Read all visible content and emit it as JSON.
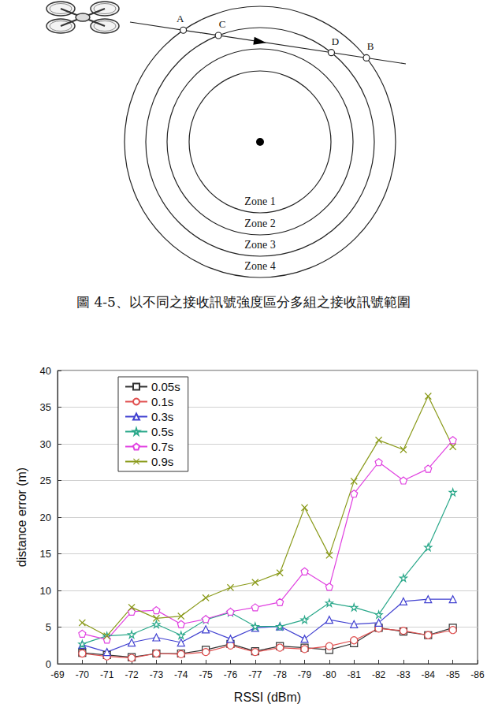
{
  "diagram": {
    "points": [
      "A",
      "C",
      "D",
      "B"
    ],
    "zones": [
      "Zone 1",
      "Zone 2",
      "Zone 3",
      "Zone 4"
    ]
  },
  "caption": "圖 4-5、以不同之接收訊號強度區分多組之接收訊號範圍",
  "chart_data": {
    "type": "line",
    "xlabel": "RSSI (dBm)",
    "ylabel": "distance error (m)",
    "x": [
      -70,
      -71,
      -72,
      -73,
      -74,
      -75,
      -76,
      -77,
      -78,
      -79,
      -80,
      -81,
      -82,
      -83,
      -84,
      -85
    ],
    "xlim": [
      -69,
      -86
    ],
    "xticks": [
      -69,
      -70,
      -71,
      -72,
      -73,
      -74,
      -75,
      -76,
      -77,
      -78,
      -79,
      -80,
      -81,
      -82,
      -83,
      -84,
      -85,
      -86
    ],
    "ylim": [
      0,
      40
    ],
    "yticks": [
      0,
      5,
      10,
      15,
      20,
      25,
      30,
      35,
      40
    ],
    "grid": true,
    "legend": "upper left",
    "series": [
      {
        "name": "0.05s",
        "color": "#333333",
        "marker": "square",
        "values": [
          1.5,
          1.2,
          0.9,
          1.4,
          1.4,
          1.9,
          2.7,
          1.7,
          2.4,
          2.2,
          1.9,
          2.8,
          4.9,
          4.4,
          3.9,
          4.9
        ]
      },
      {
        "name": "0.1s",
        "color": "#e05050",
        "marker": "circle",
        "values": [
          1.4,
          1.0,
          0.8,
          1.4,
          1.3,
          1.6,
          2.5,
          1.6,
          2.2,
          2.0,
          2.4,
          3.2,
          4.8,
          4.5,
          3.9,
          4.6
        ]
      },
      {
        "name": "0.3s",
        "color": "#4040d0",
        "marker": "triangle",
        "values": [
          2.6,
          1.6,
          2.9,
          3.6,
          2.9,
          4.7,
          3.4,
          4.9,
          5.1,
          3.4,
          6.0,
          5.4,
          5.6,
          8.5,
          8.8,
          8.8
        ]
      },
      {
        "name": "0.5s",
        "color": "#2aa88a",
        "marker": "star",
        "values": [
          2.7,
          3.8,
          4.0,
          5.4,
          3.9,
          6.0,
          7.0,
          5.1,
          5.1,
          6.0,
          8.3,
          7.7,
          6.7,
          11.7,
          15.9,
          23.4
        ]
      },
      {
        "name": "0.7s",
        "color": "#e040e0",
        "marker": "pentagon",
        "values": [
          4.1,
          3.3,
          7.1,
          7.3,
          5.4,
          6.1,
          7.1,
          7.7,
          8.4,
          12.6,
          10.5,
          23.2,
          27.5,
          25.0,
          26.6,
          30.5
        ]
      },
      {
        "name": "0.9s",
        "color": "#8a9a1a",
        "marker": "x",
        "values": [
          5.6,
          3.8,
          7.7,
          6.2,
          6.5,
          9.0,
          10.4,
          11.1,
          12.4,
          21.3,
          14.8,
          24.9,
          30.5,
          29.2,
          36.5,
          29.6
        ]
      }
    ]
  }
}
